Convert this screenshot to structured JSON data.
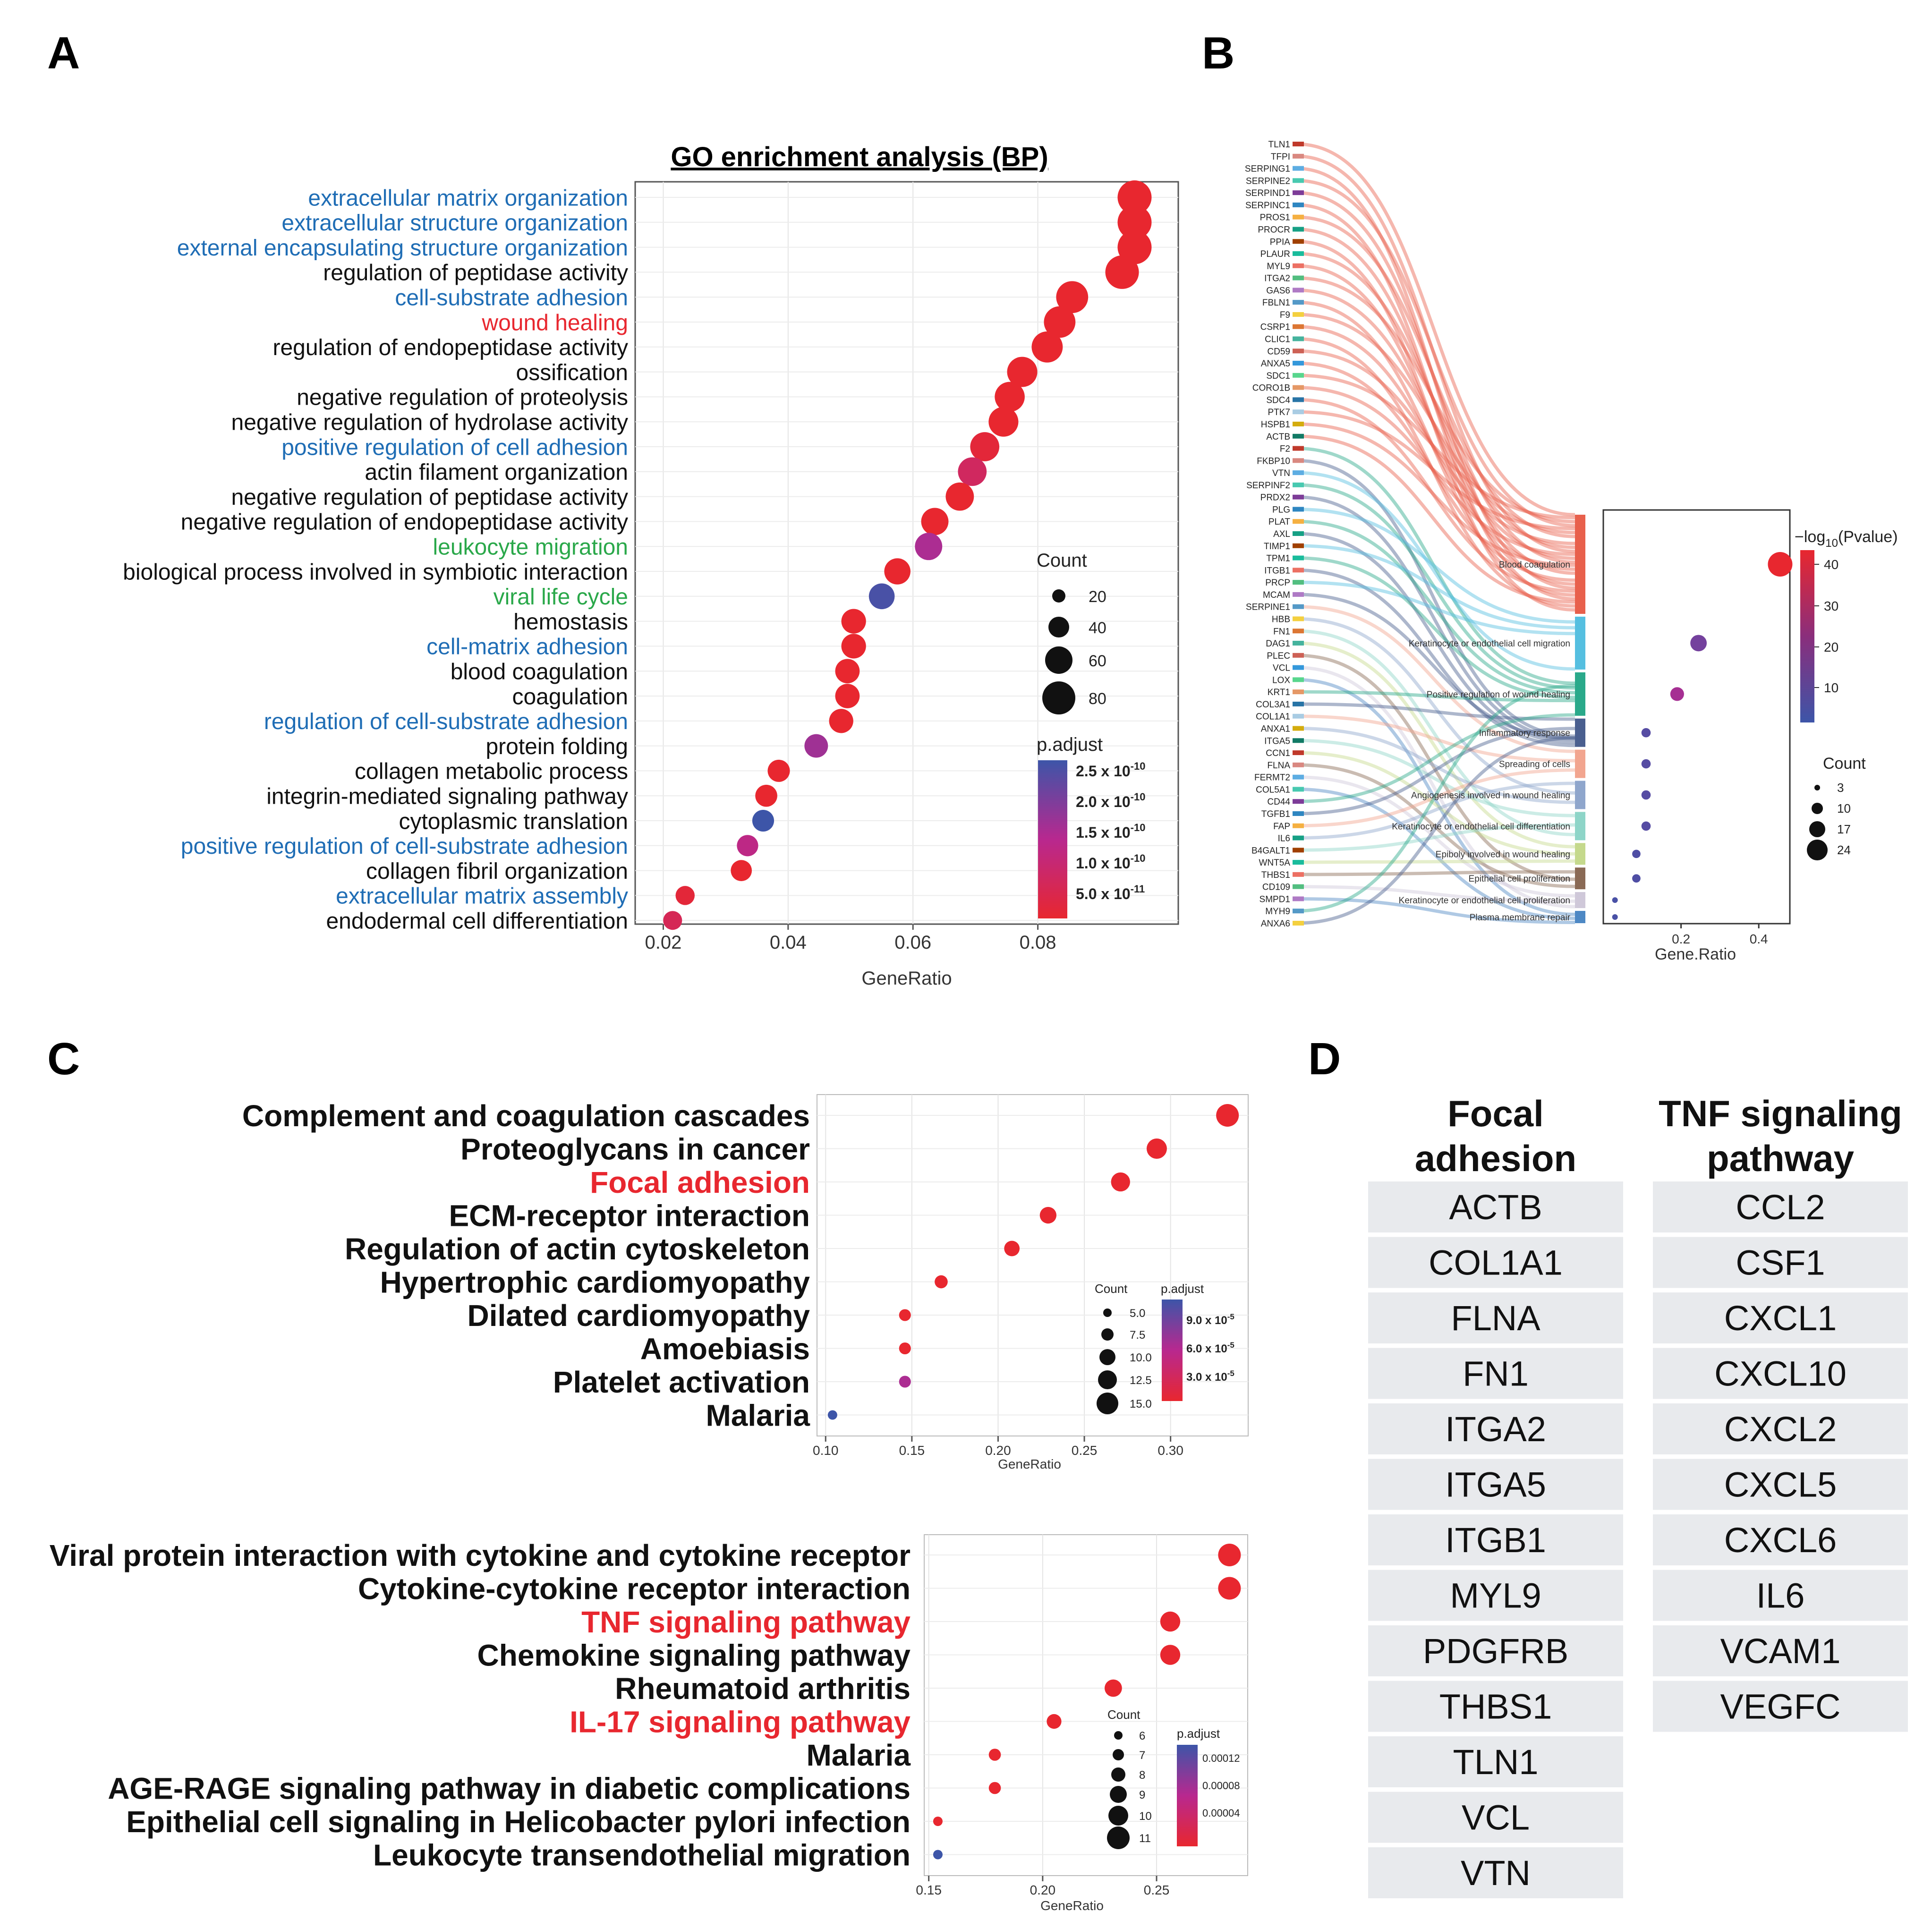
{
  "panels": {
    "A": "A",
    "B": "B",
    "C": "C",
    "D": "D"
  },
  "colors": {
    "high": "#e8272f",
    "mid": "#b8288f",
    "low": "#3d55a8",
    "blue_label": "#1f6db5",
    "red_label": "#e8272f",
    "green_label": "#2aa84a",
    "black_label": "#111111"
  },
  "chart_data": [
    {
      "id": "A",
      "type": "scatter",
      "title": "GO enrichment analysis (BP)",
      "xlabel": "GeneRatio",
      "ylabel": "",
      "xlim": [
        0.0155,
        0.1025
      ],
      "xticks": [
        0.02,
        0.04,
        0.06,
        0.08
      ],
      "xtick_labels": [
        "0.02",
        "0.04",
        "0.06",
        "0.08"
      ],
      "legend_size": {
        "title": "Count",
        "values": [
          20,
          40,
          60,
          80
        ],
        "labels": [
          "20",
          "40",
          "60",
          "80"
        ]
      },
      "legend_color": {
        "title": "p.adjust",
        "labels": [
          "2.5 x 10",
          "2.0 x 10",
          "1.5 x 10",
          "1.0 x 10",
          "5.0 x 10"
        ],
        "exponents": [
          "-10",
          "-10",
          "-10",
          "-10",
          "-11"
        ]
      },
      "terms": [
        {
          "label": "extracellular matrix organization",
          "label_color": "blue",
          "gene_ratio": 0.0955,
          "count": 88,
          "p_level": 0.0
        },
        {
          "label": "extracellular structure organization",
          "label_color": "blue",
          "gene_ratio": 0.0955,
          "count": 88,
          "p_level": 0.0
        },
        {
          "label": "external encapsulating structure organization",
          "label_color": "blue",
          "gene_ratio": 0.0955,
          "count": 88,
          "p_level": 0.0
        },
        {
          "label": "regulation of peptidase activity",
          "label_color": "black",
          "gene_ratio": 0.0935,
          "count": 86,
          "p_level": 0.0
        },
        {
          "label": "cell-substrate adhesion",
          "label_color": "blue",
          "gene_ratio": 0.0855,
          "count": 79,
          "p_level": 0.0
        },
        {
          "label": "wound healing",
          "label_color": "red",
          "gene_ratio": 0.0835,
          "count": 77,
          "p_level": 0.0
        },
        {
          "label": "regulation of endopeptidase activity",
          "label_color": "black",
          "gene_ratio": 0.0815,
          "count": 75,
          "p_level": 0.0
        },
        {
          "label": "ossification",
          "label_color": "black",
          "gene_ratio": 0.0775,
          "count": 71,
          "p_level": 0.0
        },
        {
          "label": "negative regulation of proteolysis",
          "label_color": "black",
          "gene_ratio": 0.0755,
          "count": 70,
          "p_level": 0.0
        },
        {
          "label": "negative regulation of hydrolase activity",
          "label_color": "black",
          "gene_ratio": 0.0745,
          "count": 69,
          "p_level": 0.0
        },
        {
          "label": "positive regulation of cell adhesion",
          "label_color": "blue",
          "gene_ratio": 0.0715,
          "count": 66,
          "p_level": 0.05
        },
        {
          "label": "actin filament organization",
          "label_color": "black",
          "gene_ratio": 0.0695,
          "count": 64,
          "p_level": 0.25
        },
        {
          "label": "negative regulation of peptidase activity",
          "label_color": "black",
          "gene_ratio": 0.0675,
          "count": 62,
          "p_level": 0.0
        },
        {
          "label": "negative regulation of endopeptidase activity",
          "label_color": "black",
          "gene_ratio": 0.0635,
          "count": 58,
          "p_level": 0.0
        },
        {
          "label": "leukocyte migration",
          "label_color": "green",
          "gene_ratio": 0.0625,
          "count": 58,
          "p_level": 0.55
        },
        {
          "label": "biological process involved in symbiotic interaction",
          "label_color": "black",
          "gene_ratio": 0.0575,
          "count": 53,
          "p_level": 0.0
        },
        {
          "label": "viral life cycle",
          "label_color": "green",
          "gene_ratio": 0.055,
          "count": 51,
          "p_level": 0.95
        },
        {
          "label": "hemostasis",
          "label_color": "black",
          "gene_ratio": 0.0505,
          "count": 46,
          "p_level": 0.0
        },
        {
          "label": "cell-matrix adhesion",
          "label_color": "blue",
          "gene_ratio": 0.0505,
          "count": 46,
          "p_level": 0.0
        },
        {
          "label": "blood coagulation",
          "label_color": "black",
          "gene_ratio": 0.0495,
          "count": 45,
          "p_level": 0.0
        },
        {
          "label": "coagulation",
          "label_color": "black",
          "gene_ratio": 0.0495,
          "count": 45,
          "p_level": 0.0
        },
        {
          "label": "regulation of cell-substrate adhesion",
          "label_color": "blue",
          "gene_ratio": 0.0485,
          "count": 44,
          "p_level": 0.0
        },
        {
          "label": "protein folding",
          "label_color": "black",
          "gene_ratio": 0.0445,
          "count": 41,
          "p_level": 0.6
        },
        {
          "label": "collagen metabolic process",
          "label_color": "black",
          "gene_ratio": 0.0385,
          "count": 35,
          "p_level": 0.0
        },
        {
          "label": "integrin-mediated signaling pathway",
          "label_color": "black",
          "gene_ratio": 0.0365,
          "count": 34,
          "p_level": 0.0
        },
        {
          "label": "cytoplasmic translation",
          "label_color": "black",
          "gene_ratio": 0.036,
          "count": 33,
          "p_level": 1.0
        },
        {
          "label": "positive regulation of cell-substrate adhesion",
          "label_color": "blue",
          "gene_ratio": 0.0335,
          "count": 31,
          "p_level": 0.45
        },
        {
          "label": "collagen fibril organization",
          "label_color": "black",
          "gene_ratio": 0.0325,
          "count": 30,
          "p_level": 0.0
        },
        {
          "label": "extracellular matrix assembly",
          "label_color": "blue",
          "gene_ratio": 0.0235,
          "count": 21,
          "p_level": 0.05
        },
        {
          "label": "endodermal cell differentiation",
          "label_color": "black",
          "gene_ratio": 0.0215,
          "count": 20,
          "p_level": 0.2
        }
      ]
    },
    {
      "id": "B",
      "type": "scatter",
      "title": "",
      "xlabel": "Gene.Ratio",
      "xlim": [
        0.0,
        0.48
      ],
      "xticks": [
        0.2,
        0.4
      ],
      "xtick_labels": [
        "0.2",
        "0.4"
      ],
      "legend_color": {
        "title": "−log",
        "subscript": "10",
        "title_suffix": "(Pvalue)",
        "ticks": [
          40,
          30,
          20,
          10
        ],
        "labels": [
          "40",
          "30",
          "20",
          "10"
        ]
      },
      "legend_size": {
        "title": "Count",
        "values": [
          3,
          10,
          17,
          24
        ],
        "labels": [
          "3",
          "10",
          "17",
          "24"
        ]
      },
      "genes": [
        "TLN1",
        "TFPI",
        "SERPING1",
        "SERPINE2",
        "SERPIND1",
        "SERPINC1",
        "PROS1",
        "PROCR",
        "PPIA",
        "PLAUR",
        "MYL9",
        "ITGA2",
        "GAS6",
        "FBLN1",
        "F9",
        "CSRP1",
        "CLIC1",
        "CD59",
        "ANXA5",
        "SDC1",
        "CORO1B",
        "SDC4",
        "PTK7",
        "HSPB1",
        "ACTB",
        "F2",
        "FKBP10",
        "VTN",
        "SERPINF2",
        "PRDX2",
        "PLG",
        "PLAT",
        "AXL",
        "TIMP1",
        "TPM1",
        "ITGB1",
        "PRCP",
        "MCAM",
        "SERPINE1",
        "HBB",
        "FN1",
        "DAG1",
        "PLEC",
        "VCL",
        "LOX",
        "KRT1",
        "COL3A1",
        "COL1A1",
        "ANXA1",
        "ITGA5",
        "CCN1",
        "FLNA",
        "FERMT2",
        "COL5A1",
        "CD44",
        "TGFB1",
        "FAP",
        "IL6",
        "B4GALT1",
        "WNT5A",
        "THBS1",
        "CD109",
        "SMPD1",
        "MYH9",
        "ANXA6"
      ],
      "terms": [
        {
          "label": "Blood coagulation",
          "gene_ratio": 0.455,
          "count": 24,
          "neglog10p": 44
        },
        {
          "label": "Keratinocyte or endothelial cell migration",
          "gene_ratio": 0.245,
          "count": 15,
          "neglog10p": 12
        },
        {
          "label": "Positive regulation of wound healing",
          "gene_ratio": 0.19,
          "count": 12,
          "neglog10p": 20
        },
        {
          "label": "Inflammatory response",
          "gene_ratio": 0.11,
          "count": 7,
          "neglog10p": 7
        },
        {
          "label": "Spreading of cells",
          "gene_ratio": 0.11,
          "count": 7,
          "neglog10p": 7
        },
        {
          "label": "Angiogenesis involved in wound healing",
          "gene_ratio": 0.11,
          "count": 7,
          "neglog10p": 7
        },
        {
          "label": "Keratinocyte or endothelial cell differentiation",
          "gene_ratio": 0.11,
          "count": 7,
          "neglog10p": 7
        },
        {
          "label": "Epiboly involved in wound healing",
          "gene_ratio": 0.085,
          "count": 6,
          "neglog10p": 6
        },
        {
          "label": "Epithelial cell proliferation",
          "gene_ratio": 0.085,
          "count": 6,
          "neglog10p": 6
        },
        {
          "label": "Keratinocyte or endothelial cell proliferation",
          "gene_ratio": 0.03,
          "count": 3,
          "neglog10p": 5
        },
        {
          "label": "Plasma membrane repair",
          "gene_ratio": 0.03,
          "count": 3,
          "neglog10p": 5
        }
      ]
    },
    {
      "id": "C1",
      "type": "scatter",
      "title": "",
      "xlabel": "GeneRatio",
      "xlim": [
        0.095,
        0.345
      ],
      "xticks": [
        0.1,
        0.15,
        0.2,
        0.25,
        0.3
      ],
      "xtick_labels": [
        "0.10",
        "0.15",
        "0.20",
        "0.25",
        "0.30"
      ],
      "legend_size": {
        "title": "Count",
        "values": [
          5.0,
          7.5,
          10.0,
          12.5,
          15.0
        ],
        "labels": [
          "5.0",
          "7.5",
          "10.0",
          "12.5",
          "15.0"
        ]
      },
      "legend_color": {
        "title": "p.adjust",
        "labels": [
          "9.0 x 10",
          "6.0 x 10",
          "3.0 x 10"
        ],
        "exponents": [
          "-5",
          "-5",
          "-5"
        ]
      },
      "terms": [
        {
          "label": "Complement and coagulation cascades",
          "label_color": "black",
          "gene_ratio": 0.333,
          "count": 16,
          "p_level": 0.0
        },
        {
          "label": "Proteoglycans in cancer",
          "label_color": "black",
          "gene_ratio": 0.292,
          "count": 14,
          "p_level": 0.0
        },
        {
          "label": "Focal adhesion",
          "label_color": "red",
          "gene_ratio": 0.271,
          "count": 13,
          "p_level": 0.0
        },
        {
          "label": "ECM-receptor interaction",
          "label_color": "black",
          "gene_ratio": 0.229,
          "count": 11,
          "p_level": 0.0
        },
        {
          "label": "Regulation of actin cytoskeleton",
          "label_color": "black",
          "gene_ratio": 0.208,
          "count": 10,
          "p_level": 0.0
        },
        {
          "label": "Hypertrophic cardiomyopathy",
          "label_color": "black",
          "gene_ratio": 0.167,
          "count": 8,
          "p_level": 0.0
        },
        {
          "label": "Dilated cardiomyopathy",
          "label_color": "black",
          "gene_ratio": 0.146,
          "count": 7,
          "p_level": 0.0
        },
        {
          "label": "Amoebiasis",
          "label_color": "black",
          "gene_ratio": 0.146,
          "count": 7,
          "p_level": 0.0
        },
        {
          "label": "Platelet activation",
          "label_color": "black",
          "gene_ratio": 0.146,
          "count": 7,
          "p_level": 0.55
        },
        {
          "label": "Malaria",
          "label_color": "black",
          "gene_ratio": 0.104,
          "count": 5,
          "p_level": 1.0
        }
      ]
    },
    {
      "id": "C2",
      "type": "scatter",
      "title": "",
      "xlabel": "GeneRatio",
      "xlim": [
        0.148,
        0.29
      ],
      "xticks": [
        0.15,
        0.2,
        0.25
      ],
      "xtick_labels": [
        "0.15",
        "0.20",
        "0.25"
      ],
      "legend_size": {
        "title": "Count",
        "values": [
          6,
          7,
          8,
          9,
          10,
          11
        ],
        "labels": [
          "6",
          "7",
          "8",
          "9",
          "10",
          "11"
        ]
      },
      "legend_color": {
        "title": "p.adjust",
        "labels": [
          "0.00012",
          "0.00008",
          "0.00004"
        ]
      },
      "terms": [
        {
          "label": "Viral protein interaction with cytokine and cytokine receptor",
          "label_color": "black",
          "gene_ratio": 0.282,
          "count": 11,
          "p_level": 0.0
        },
        {
          "label": "Cytokine-cytokine receptor interaction",
          "label_color": "black",
          "gene_ratio": 0.282,
          "count": 11,
          "p_level": 0.0
        },
        {
          "label": "TNF signaling pathway",
          "label_color": "red",
          "gene_ratio": 0.256,
          "count": 10,
          "p_level": 0.0
        },
        {
          "label": "Chemokine signaling pathway",
          "label_color": "black",
          "gene_ratio": 0.256,
          "count": 10,
          "p_level": 0.0
        },
        {
          "label": "Rheumatoid arthritis",
          "label_color": "black",
          "gene_ratio": 0.231,
          "count": 9,
          "p_level": 0.0
        },
        {
          "label": "IL-17 signaling pathway",
          "label_color": "red",
          "gene_ratio": 0.205,
          "count": 8,
          "p_level": 0.0
        },
        {
          "label": "Malaria",
          "label_color": "black",
          "gene_ratio": 0.179,
          "count": 7,
          "p_level": 0.0
        },
        {
          "label": "AGE-RAGE signaling pathway in diabetic complications",
          "label_color": "black",
          "gene_ratio": 0.179,
          "count": 7,
          "p_level": 0.0
        },
        {
          "label": "Epithelial cell signaling in Helicobacter pylori infection",
          "label_color": "black",
          "gene_ratio": 0.154,
          "count": 6,
          "p_level": 0.0
        },
        {
          "label": "Leukocyte transendothelial migration",
          "label_color": "black",
          "gene_ratio": 0.154,
          "count": 6,
          "p_level": 1.0
        }
      ]
    },
    {
      "id": "D",
      "type": "table",
      "columns": [
        {
          "header": [
            "Focal",
            "adhesion"
          ],
          "genes": [
            "ACTB",
            "COL1A1",
            "FLNA",
            "FN1",
            "ITGA2",
            "ITGA5",
            "ITGB1",
            "MYL9",
            "PDGFRB",
            "THBS1",
            "TLN1",
            "VCL",
            "VTN"
          ]
        },
        {
          "header": [
            "TNF signaling",
            "pathway"
          ],
          "genes": [
            "CCL2",
            "CSF1",
            "CXCL1",
            "CXCL10",
            "CXCL2",
            "CXCL5",
            "CXCL6",
            "IL6",
            "VCAM1",
            "VEGFC"
          ]
        }
      ]
    }
  ]
}
